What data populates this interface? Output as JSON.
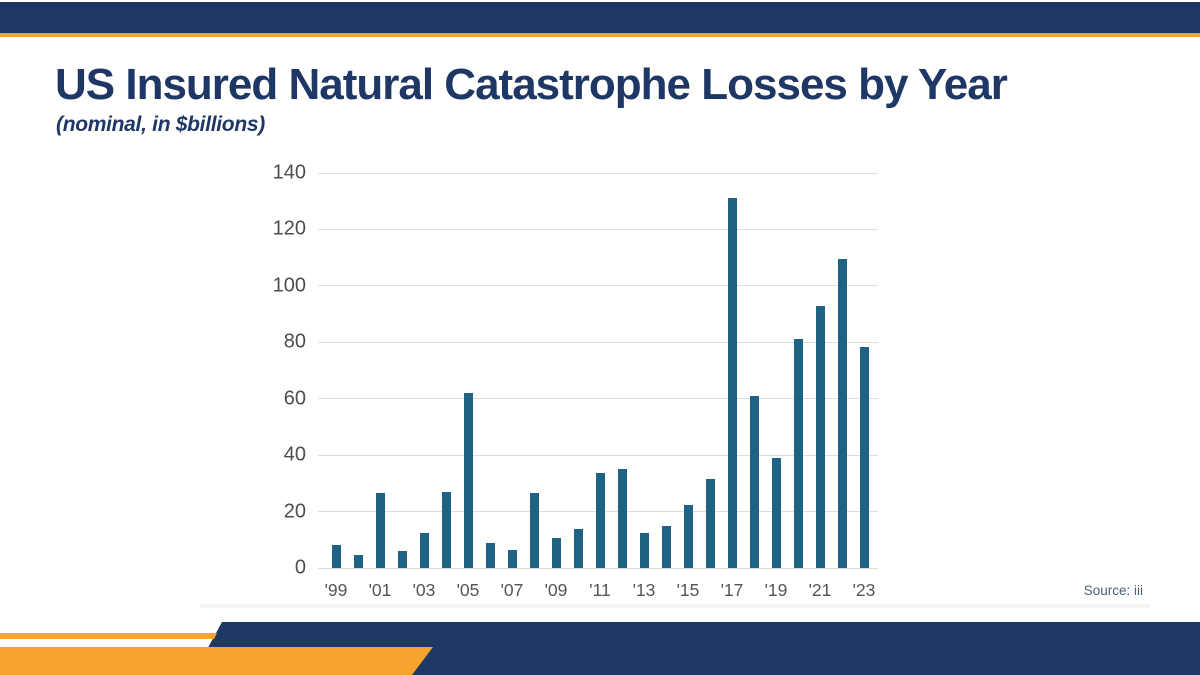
{
  "title": "US Insured Natural Catastrophe Losses by Year",
  "subtitle": "(nominal, in $billions)",
  "source_note": "Source: iii",
  "colors": {
    "navy": "#1e3765",
    "orange": "#f7a32f",
    "bar": "#1f6384",
    "gridline": "#dedede",
    "axis_text": "#4d4d4d",
    "title_text": "#1e3765",
    "source_text": "#4c5d75"
  },
  "chart_data": {
    "type": "bar",
    "title": "US Insured Natural Catastrophe Losses by Year",
    "subtitle": "(nominal, in $billions)",
    "xlabel": "",
    "ylabel": "",
    "x": [
      1999,
      2000,
      2001,
      2002,
      2003,
      2004,
      2005,
      2006,
      2007,
      2008,
      2009,
      2010,
      2011,
      2012,
      2013,
      2014,
      2015,
      2016,
      2017,
      2018,
      2019,
      2020,
      2021,
      2022,
      2023
    ],
    "x_tick_labels": [
      "'99",
      "'01",
      "'03",
      "'05",
      "'07",
      "'09",
      "'11",
      "'13",
      "'15",
      "'17",
      "'19",
      "'21",
      "'23"
    ],
    "x_tick_every": 2,
    "values": [
      8,
      4.5,
      26.5,
      6,
      12.5,
      27,
      62,
      9,
      6.5,
      26.5,
      10.5,
      14,
      33.5,
      35,
      12.5,
      15,
      22.5,
      31.5,
      131,
      61,
      39,
      81,
      93,
      109.5,
      78.5
    ],
    "y_ticks": [
      0,
      20,
      40,
      60,
      80,
      100,
      120,
      140
    ],
    "ylim": [
      0,
      140
    ],
    "grid": true,
    "legend": "none",
    "bar_color": "#1f6384"
  }
}
